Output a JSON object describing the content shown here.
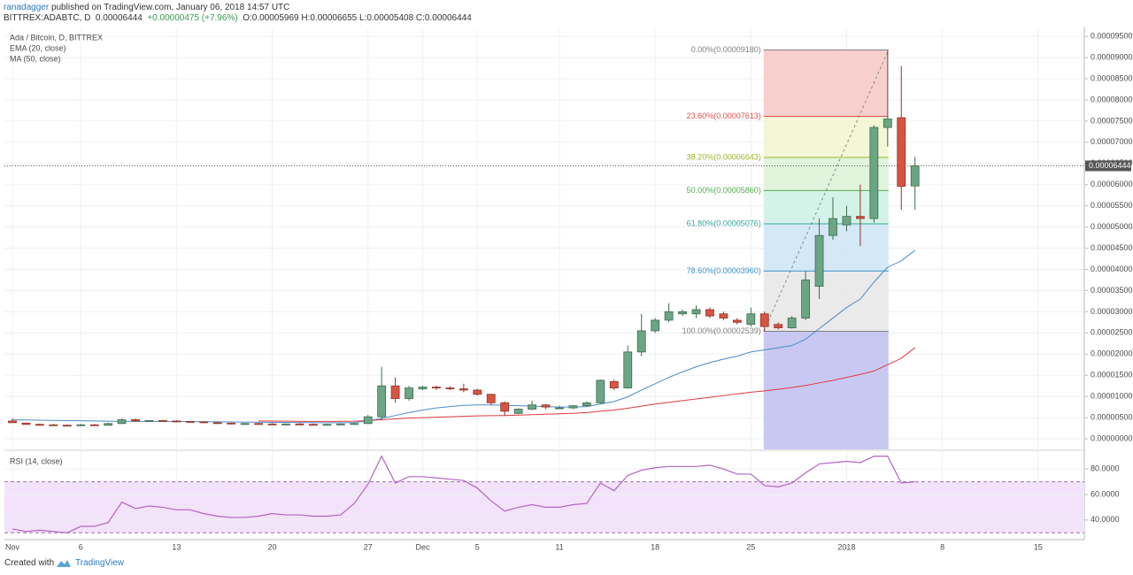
{
  "header": {
    "author": "ranadagger",
    "published": "published on TradingView.com, January 06, 2018 14:57 UTC",
    "symbol": "BITTREX:ADABTC, D",
    "price": "0.00006444",
    "change": "+0.00000475 (+7.96%)",
    "ohlc": "O:0.00005969 H:0.00006655 L:0.00005408 C:0.00006444"
  },
  "chart_data": [
    {
      "type": "candlestick",
      "title": "Ada / Bitcoin, D, BITTREX",
      "categories": [
        "Nov",
        null,
        null,
        null,
        null,
        "6",
        null,
        null,
        null,
        null,
        null,
        null,
        "13",
        null,
        null,
        null,
        null,
        null,
        null,
        "20",
        null,
        null,
        null,
        null,
        null,
        null,
        "27",
        null,
        null,
        null,
        "Dec",
        null,
        null,
        null,
        "5",
        null,
        null,
        null,
        null,
        null,
        "11",
        null,
        null,
        null,
        null,
        null,
        null,
        "18",
        null,
        null,
        null,
        null,
        null,
        null,
        "25",
        null,
        null,
        null,
        null,
        null,
        null,
        "2018",
        null,
        null,
        null,
        null,
        null,
        null,
        "8",
        null,
        null,
        null,
        null,
        null,
        null,
        "15",
        null,
        null,
        null
      ],
      "open": [
        4.2e-06,
        3.7e-06,
        3.4e-06,
        3.3e-06,
        3.2e-06,
        3.1e-06,
        3.3e-06,
        3.2e-06,
        3.6e-06,
        4.5e-06,
        4.2e-06,
        4.3e-06,
        4.2e-06,
        4.1e-06,
        4e-06,
        3.8e-06,
        3.7e-06,
        3.5e-06,
        3.6e-06,
        3.5e-06,
        3.4e-06,
        3.5e-06,
        3.4e-06,
        3.3e-06,
        3.4e-06,
        3.5e-06,
        3.6e-06,
        5.2e-06,
        1.25e-05,
        9.5e-06,
        1.18e-05,
        1.22e-05,
        1.2e-05,
        1.18e-05,
        1.15e-05,
        1.05e-05,
        8.5e-06,
        6e-06,
        7e-06,
        8e-06,
        7.2e-06,
        7.3e-06,
        7.8e-06,
        8.5e-06,
        1.35e-05,
        1.2e-05,
        2.05e-05,
        2.55e-05,
        2.8e-05,
        2.95e-05,
        2.95e-05,
        3.05e-05,
        2.95e-05,
        2.8e-05,
        2.7e-05,
        2.95e-05,
        2.7e-05,
        2.62e-05,
        2.85e-05,
        3.6e-05,
        4.8e-05,
        5.05e-05,
        5.25e-05,
        5.2e-05,
        7.35e-05,
        7.58e-05,
        5.969e-05,
        null,
        null,
        null,
        null,
        null,
        null,
        null,
        null,
        null,
        null,
        null,
        null
      ],
      "high": [
        4.8e-06,
        3.8e-06,
        3.6e-06,
        3.5e-06,
        3.4e-06,
        3.5e-06,
        3.5e-06,
        3.8e-06,
        4.8e-06,
        4.8e-06,
        4.4e-06,
        4.5e-06,
        4.4e-06,
        4.2e-06,
        4.1e-06,
        4e-06,
        3.8e-06,
        3.7e-06,
        3.8e-06,
        3.7e-06,
        3.6e-06,
        3.7e-06,
        3.6e-06,
        3.5e-06,
        3.6e-06,
        3.7e-06,
        5.6e-06,
        1.7e-05,
        1.45e-05,
        1.25e-05,
        1.25e-05,
        1.25e-05,
        1.24e-05,
        1.3e-05,
        1.18e-05,
        1.06e-05,
        8.8e-06,
        7.2e-06,
        9e-06,
        8.2e-06,
        7.8e-06,
        8e-06,
        8.8e-06,
        1.4e-05,
        1.4e-05,
        2.2e-05,
        2.95e-05,
        2.85e-05,
        3.2e-05,
        3.05e-05,
        3.15e-05,
        3.1e-05,
        3e-05,
        2.85e-05,
        3.1e-05,
        3e-05,
        2.75e-05,
        2.9e-05,
        3.95e-05,
        5.2e-05,
        5.7e-05,
        5.5e-05,
        6e-05,
        7.4e-05,
        9.18e-05,
        8.8e-05,
        6.655e-05,
        null,
        null,
        null,
        null,
        null,
        null,
        null,
        null,
        null,
        null,
        null,
        null
      ],
      "low": [
        3.8e-06,
        3.3e-06,
        3.2e-06,
        3.1e-06,
        3e-06,
        3e-06,
        3.1e-06,
        3.1e-06,
        3.5e-06,
        4e-06,
        4e-06,
        4e-06,
        3.9e-06,
        3.8e-06,
        3.7e-06,
        3.6e-06,
        3.4e-06,
        3.3e-06,
        3.4e-06,
        3.3e-06,
        3.2e-06,
        3.3e-06,
        3.2e-06,
        3.2e-06,
        3.3e-06,
        3.3e-06,
        3.5e-06,
        4.5e-06,
        8.5e-06,
        9e-06,
        1.15e-05,
        1.15e-05,
        1.15e-05,
        1.1e-05,
        1.02e-05,
        8e-06,
        5.5e-06,
        5.8e-06,
        6.8e-06,
        7e-06,
        7e-06,
        7e-06,
        7.6e-06,
        8.3e-06,
        1.15e-05,
        1.18e-05,
        1.95e-05,
        2.5e-05,
        2.75e-05,
        2.9e-05,
        2.85e-05,
        2.85e-05,
        2.8e-05,
        2.7e-05,
        2.65e-05,
        2.539e-05,
        2.58e-05,
        2.6e-05,
        2.8e-05,
        3.3e-05,
        4.7e-05,
        4.9e-05,
        4.55e-05,
        5.1e-05,
        6.9e-05,
        5.4e-05,
        5.408e-05,
        null,
        null,
        null,
        null,
        null,
        null,
        null,
        null,
        null,
        null,
        null,
        null
      ],
      "close": [
        3.8e-06,
        3.4e-06,
        3.3e-06,
        3.2e-06,
        3.1e-06,
        3.3e-06,
        3.2e-06,
        3.6e-06,
        4.5e-06,
        4.2e-06,
        4.3e-06,
        4.2e-06,
        4.1e-06,
        4e-06,
        3.8e-06,
        3.7e-06,
        3.5e-06,
        3.6e-06,
        3.5e-06,
        3.4e-06,
        3.5e-06,
        3.4e-06,
        3.3e-06,
        3.4e-06,
        3.5e-06,
        3.6e-06,
        5.2e-06,
        1.25e-05,
        9.5e-06,
        1.2e-05,
        1.22e-05,
        1.2e-05,
        1.18e-05,
        1.15e-05,
        1.05e-05,
        8.5e-06,
        6.5e-06,
        7e-06,
        8e-06,
        7.5e-06,
        7.3e-06,
        7.8e-06,
        8.5e-06,
        1.38e-05,
        1.2e-05,
        2.05e-05,
        2.55e-05,
        2.8e-05,
        3e-05,
        3e-05,
        3.05e-05,
        2.9e-05,
        2.85e-05,
        2.75e-05,
        2.95e-05,
        2.65e-05,
        2.62e-05,
        2.85e-05,
        3.75e-05,
        4.8e-05,
        5.2e-05,
        5.25e-05,
        5.2e-05,
        7.35e-05,
        7.55e-05,
        5.96e-05,
        6.444e-05,
        null,
        null,
        null,
        null,
        null,
        null,
        null,
        null,
        null,
        null,
        null,
        null
      ],
      "up_color": "#6ba583",
      "down_color": "#d75442",
      "series": [
        {
          "name": "EMA (20, close)",
          "color": "#4a8bc9",
          "values": [
            4.5e-06,
            4.45e-06,
            4.4e-06,
            4.35e-06,
            4.3e-06,
            4.25e-06,
            4.2e-06,
            4.15e-06,
            4.12e-06,
            4.1e-06,
            4.1e-06,
            4.1e-06,
            4.08e-06,
            4.05e-06,
            4.02e-06,
            4e-06,
            3.98e-06,
            3.95e-06,
            3.92e-06,
            3.9e-06,
            3.88e-06,
            3.85e-06,
            3.82e-06,
            3.8e-06,
            3.8e-06,
            3.85e-06,
            4.2e-06,
            4.8e-06,
            5.5e-06,
            6.2e-06,
            6.8e-06,
            7.3e-06,
            7.6e-06,
            7.9e-06,
            8e-06,
            8e-06,
            7.9e-06,
            7.8e-06,
            7.7e-06,
            7.6e-06,
            7.5e-06,
            7.5e-06,
            7.6e-06,
            8.2e-06,
            8.8e-06,
            9.9e-06,
            1.15e-05,
            1.3e-05,
            1.45e-05,
            1.58e-05,
            1.7e-05,
            1.8e-05,
            1.88e-05,
            1.95e-05,
            2.05e-05,
            2.1e-05,
            2.15e-05,
            2.2e-05,
            2.35e-05,
            2.6e-05,
            2.85e-05,
            3.1e-05,
            3.3e-05,
            3.7e-05,
            4.05e-05,
            4.2e-05,
            4.45e-05,
            null,
            null,
            null,
            null,
            null,
            null,
            null,
            null,
            null,
            null,
            null,
            null
          ]
        },
        {
          "name": "MA (50, close)",
          "color": "#e0393e",
          "values": [
            null,
            null,
            null,
            null,
            null,
            null,
            null,
            null,
            null,
            null,
            null,
            null,
            null,
            null,
            null,
            null,
            null,
            null,
            4.2e-06,
            4.18e-06,
            4.15e-06,
            4.12e-06,
            4.1e-06,
            4.1e-06,
            4.12e-06,
            4.15e-06,
            4.3e-06,
            4.5e-06,
            4.7e-06,
            4.9e-06,
            5e-06,
            5.1e-06,
            5.2e-06,
            5.3e-06,
            5.4e-06,
            5.45e-06,
            5.5e-06,
            5.6e-06,
            5.7e-06,
            5.8e-06,
            5.9e-06,
            6e-06,
            6.2e-06,
            6.5e-06,
            6.8e-06,
            7.2e-06,
            7.7e-06,
            8.2e-06,
            8.6e-06,
            9e-06,
            9.4e-06,
            9.8e-06,
            1.02e-05,
            1.06e-05,
            1.1e-05,
            1.13e-05,
            1.17e-05,
            1.21e-05,
            1.26e-05,
            1.32e-05,
            1.38e-05,
            1.45e-05,
            1.52e-05,
            1.6e-05,
            1.75e-05,
            1.9e-05,
            2.15e-05,
            null,
            null,
            null,
            null,
            null,
            null,
            null,
            null,
            null,
            null,
            null,
            null
          ]
        }
      ],
      "fib": [
        {
          "label": "0.00%(0.00009180)",
          "value": 9.18e-05,
          "color": "#808080",
          "fill": null
        },
        {
          "label": "23.60%(0.00007613)",
          "value": 7.613e-05,
          "color": "#e0504e",
          "fill": "#f6cbc8"
        },
        {
          "label": "38.20%(0.00006643)",
          "value": 6.643e-05,
          "color": "#9fb52b",
          "fill": "#f2f6d0"
        },
        {
          "label": "50.00%(0.00005860)",
          "value": 5.86e-05,
          "color": "#57a94e",
          "fill": "#def4d8"
        },
        {
          "label": "61.80%(0.00005076)",
          "value": 5.076e-05,
          "color": "#35a797",
          "fill": "#cff2e5"
        },
        {
          "label": "78.60%(0.00003960)",
          "value": 3.96e-05,
          "color": "#3e93c6",
          "fill": "#d0e6f4"
        },
        {
          "label": "100.00%(0.00002539)",
          "value": 2.539e-05,
          "color": "#808080",
          "fill": "#e8e8e8"
        }
      ],
      "last_price": {
        "value": 6.444e-05,
        "label": "0.00006444"
      },
      "ylim": [
        -2.5e-06,
        9.67e-05
      ],
      "yticks": [
        {
          "value": 0,
          "label": "0.00000000"
        },
        {
          "value": 5e-06,
          "label": "0.00000500"
        },
        {
          "value": 1e-05,
          "label": "0.00001000"
        },
        {
          "value": 1.5e-05,
          "label": "0.00001500"
        },
        {
          "value": 2e-05,
          "label": "0.00002000"
        },
        {
          "value": 2.5e-05,
          "label": "0.00002500"
        },
        {
          "value": 3e-05,
          "label": "0.00003000"
        },
        {
          "value": 3.5e-05,
          "label": "0.00003500"
        },
        {
          "value": 4e-05,
          "label": "0.00004000"
        },
        {
          "value": 4.5e-05,
          "label": "0.00004500"
        },
        {
          "value": 5e-05,
          "label": "0.00005000"
        },
        {
          "value": 5.5e-05,
          "label": "0.00005500"
        },
        {
          "value": 6e-05,
          "label": "0.00006000"
        },
        {
          "value": 6.5e-05,
          "label": "0.00006500"
        },
        {
          "value": 7e-05,
          "label": "0.00007000"
        },
        {
          "value": 7.5e-05,
          "label": "0.00007500"
        },
        {
          "value": 8e-05,
          "label": "0.00008000"
        },
        {
          "value": 8.5e-05,
          "label": "0.00008500"
        },
        {
          "value": 9e-05,
          "label": "0.00009000"
        },
        {
          "value": 9.5e-05,
          "label": "0.00009500"
        }
      ],
      "grid": true
    },
    {
      "type": "line",
      "title": "RSI (14, close)",
      "color": "#b164c4",
      "values": [
        33,
        31,
        32,
        31,
        30,
        35,
        35,
        38,
        54,
        49,
        51,
        50,
        48,
        48,
        45,
        43,
        42,
        42,
        43,
        45,
        44,
        44,
        43,
        43,
        44,
        53,
        68,
        90,
        69,
        74,
        74,
        73,
        72,
        71,
        65,
        55,
        47,
        50,
        52,
        50,
        50,
        52,
        53,
        69,
        63,
        75,
        79,
        81,
        82,
        82,
        82,
        83,
        80,
        76,
        76,
        67,
        66,
        69,
        77,
        84,
        85,
        86,
        85,
        90,
        90,
        69,
        70,
        null,
        null,
        null,
        null,
        null,
        null,
        null,
        null,
        null,
        null,
        null,
        null
      ],
      "bands": [
        70,
        30
      ],
      "band_color": "#9c6fb8",
      "band_fill": "#f3e3fa",
      "ylim": [
        26,
        94
      ],
      "yticks": [
        {
          "value": 80,
          "label": "80.0000"
        },
        {
          "value": 60,
          "label": "60.0000"
        },
        {
          "value": 40,
          "label": "40.0000"
        }
      ],
      "grid": true
    }
  ],
  "footer": {
    "created": "Created with",
    "brand": "TradingView"
  }
}
